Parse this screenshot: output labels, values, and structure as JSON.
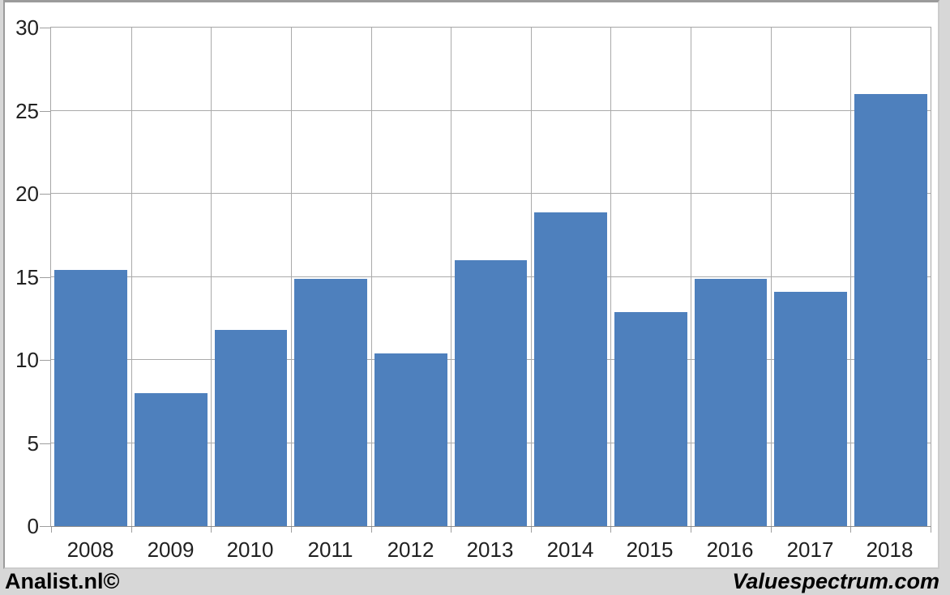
{
  "footer": {
    "left": "Analist.nl©",
    "right": "Valuespectrum.com"
  },
  "colors": {
    "bar": "#4e80bd",
    "gridline": "#aaaaaa",
    "axis": "#8c8c8c",
    "tick": "#9e9e9e",
    "label_text": "#212121",
    "panel_bg": "#ffffff",
    "outer_bg": "#d7d7d7"
  },
  "chart_data": {
    "type": "bar",
    "title": "",
    "xlabel": "",
    "ylabel": "",
    "categories": [
      "2008",
      "2009",
      "2010",
      "2011",
      "2012",
      "2013",
      "2014",
      "2015",
      "2016",
      "2017",
      "2018"
    ],
    "values": [
      15.4,
      8.0,
      11.8,
      14.9,
      10.4,
      16.0,
      18.9,
      12.9,
      14.9,
      14.1,
      26.0
    ],
    "ylim": [
      0,
      30
    ],
    "ytick_step": 5,
    "yticks": [
      0,
      5,
      10,
      15,
      20,
      25,
      30
    ],
    "grid": true,
    "legend": "none",
    "bar_gap_fraction": 0.09
  }
}
